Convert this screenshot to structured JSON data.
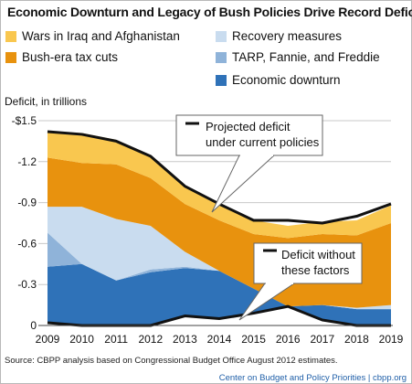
{
  "chart_data": {
    "type": "area",
    "title": "Economic Downturn and Legacy of Bush Policies Drive Record Deficits",
    "ylabel": "Deficit, in trillions",
    "xlabel": "",
    "ylim": [
      0,
      1.5
    ],
    "ytick_labels": [
      "0",
      "-0.3",
      "-0.6",
      "-0.9",
      "-1.2",
      "-$1.5"
    ],
    "ytick_values": [
      0,
      0.3,
      0.6,
      0.9,
      1.2,
      1.5
    ],
    "x": [
      "2009",
      "2010",
      "2011",
      "2012",
      "2013",
      "2014",
      "2015",
      "2016",
      "2017",
      "2018",
      "2019"
    ],
    "grid": true,
    "legend": [
      {
        "label": "Wars in Iraq and Afghanistan",
        "color": "#f9c74f"
      },
      {
        "label": "Recovery measures",
        "color": "#c9dcef"
      },
      {
        "label": "Bush-era tax cuts",
        "color": "#e8920e"
      },
      {
        "label": "TARP, Fannie, and Freddie",
        "color": "#8fb3d9"
      },
      {
        "label": "Economic downturn",
        "color": "#2f72b8"
      }
    ],
    "series": [
      {
        "name": "Deficit without these factors",
        "color": "#111111",
        "values": [
          0.02,
          0.0,
          0.0,
          0.0,
          0.07,
          0.05,
          0.09,
          0.14,
          0.04,
          0.0,
          0.0
        ]
      },
      {
        "name": "Economic downturn",
        "color": "#2f72b8",
        "values": [
          0.41,
          0.45,
          0.33,
          0.39,
          0.35,
          0.35,
          0.18,
          0.0,
          0.11,
          0.12,
          0.12
        ]
      },
      {
        "name": "TARP, Fannie, and Freddie",
        "color": "#8fb3d9",
        "values": [
          0.25,
          0.0,
          0.0,
          0.02,
          0.01,
          0.0,
          0.0,
          0.0,
          0.0,
          0.0,
          0.0
        ]
      },
      {
        "name": "Recovery measures",
        "color": "#c9dcef",
        "values": [
          0.19,
          0.42,
          0.45,
          0.32,
          0.11,
          0.0,
          0.0,
          0.0,
          0.0,
          0.01,
          0.03
        ]
      },
      {
        "name": "Bush-era tax cuts",
        "color": "#e8920e",
        "values": [
          0.36,
          0.32,
          0.4,
          0.35,
          0.35,
          0.37,
          0.4,
          0.5,
          0.52,
          0.53,
          0.6
        ]
      },
      {
        "name": "Wars in Iraq and Afghanistan",
        "color": "#f9c74f",
        "values": [
          0.19,
          0.22,
          0.18,
          0.16,
          0.13,
          0.12,
          0.1,
          0.09,
          0.09,
          0.11,
          0.13
        ]
      },
      {
        "name": "Projected deficit under current policies",
        "color": "#111111",
        "values": [
          1.42,
          1.4,
          1.35,
          1.24,
          1.02,
          0.89,
          0.77,
          0.77,
          0.75,
          0.8,
          0.89
        ]
      }
    ],
    "annotations": [
      {
        "text_lines": [
          "Projected deficit",
          "under current policies"
        ]
      },
      {
        "text_lines": [
          "Deficit without",
          "these factors"
        ]
      }
    ]
  },
  "footer": {
    "source": "Source: CBPP analysis based on Congressional Budget Office August 2012 estimates.",
    "credit": "Center on Budget and Policy Priorities | cbpp.org"
  }
}
